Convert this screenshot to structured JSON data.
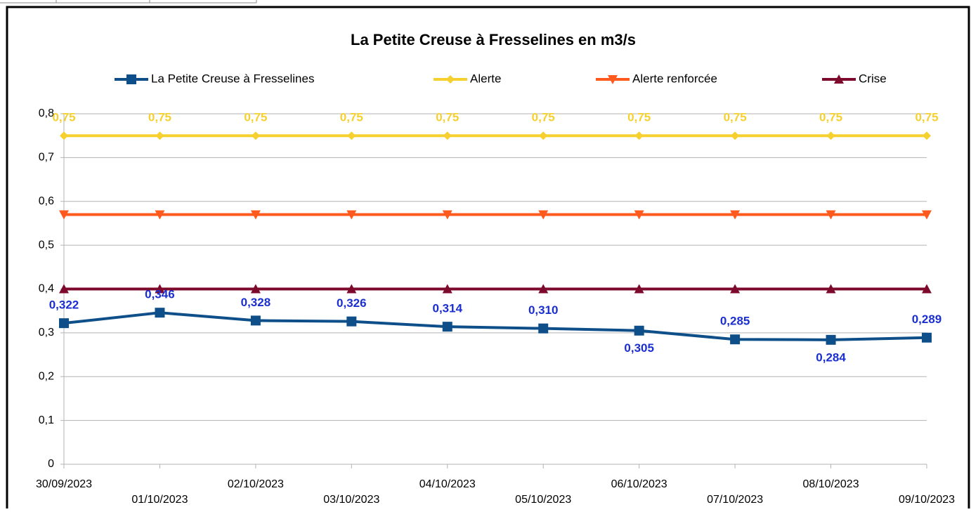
{
  "chart_data": {
    "type": "line",
    "title": "La Petite Creuse à Fresselines en m3/s",
    "categories": [
      "30/09/2023",
      "01/10/2023",
      "02/10/2023",
      "03/10/2023",
      "04/10/2023",
      "05/10/2023",
      "06/10/2023",
      "07/10/2023",
      "08/10/2023",
      "09/10/2023"
    ],
    "series": [
      {
        "name": "La Petite Creuse à Fresselines",
        "color": "#0e4f8a",
        "marker": "square",
        "values": [
          0.322,
          0.346,
          0.328,
          0.326,
          0.314,
          0.31,
          0.305,
          0.285,
          0.284,
          0.289
        ],
        "value_labels": [
          "0,322",
          "0,346",
          "0,328",
          "0,326",
          "0,314",
          "0,310",
          "0,305",
          "0,285",
          "0,284",
          "0,289"
        ],
        "label_color": "#1b2fd0"
      },
      {
        "name": "Alerte",
        "color": "#f6d02e",
        "marker": "diamond",
        "values": [
          0.75,
          0.75,
          0.75,
          0.75,
          0.75,
          0.75,
          0.75,
          0.75,
          0.75,
          0.75
        ],
        "value_labels": [
          "0,75",
          "0,75",
          "0,75",
          "0,75",
          "0,75",
          "0,75",
          "0,75",
          "0,75",
          "0,75",
          "0,75"
        ],
        "label_color": "#f6d02e"
      },
      {
        "name": "Alerte renforcée",
        "color": "#ff5a1e",
        "marker": "triangle-down",
        "values": [
          0.57,
          0.57,
          0.57,
          0.57,
          0.57,
          0.57,
          0.57,
          0.57,
          0.57,
          0.57
        ]
      },
      {
        "name": "Crise",
        "color": "#7d0a2c",
        "marker": "triangle-up",
        "values": [
          0.4,
          0.4,
          0.4,
          0.4,
          0.4,
          0.4,
          0.4,
          0.4,
          0.4,
          0.4
        ]
      }
    ],
    "ylim": [
      0,
      0.8
    ],
    "yticks": [
      0,
      {
        "value": 0.1,
        "label": "0,1"
      },
      {
        "value": 0.2,
        "label": "0,2"
      },
      {
        "value": 0.3,
        "label": "0,3"
      },
      {
        "value": 0.4,
        "label": "0,4"
      },
      {
        "value": 0.5,
        "label": "0,5"
      },
      {
        "value": 0.6,
        "label": "0,6"
      },
      {
        "value": 0.7,
        "label": "0,7"
      },
      {
        "value": 0.8,
        "label": "0,8"
      }
    ],
    "grid": true,
    "legend": "top"
  }
}
